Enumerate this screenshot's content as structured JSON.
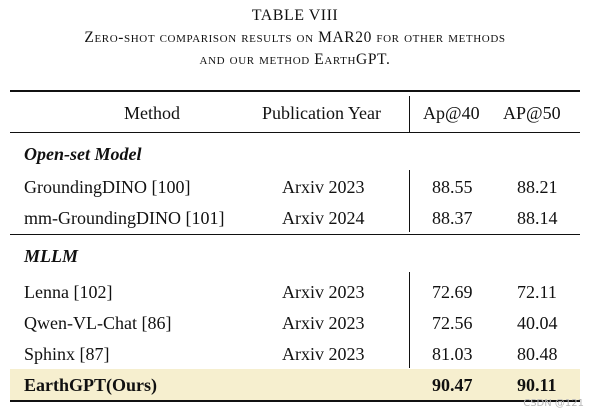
{
  "caption": {
    "title": "TABLE VIII",
    "line1": "Zero-shot comparison results on MAR20 for other methods",
    "line2": "and our method EarthGPT."
  },
  "table": {
    "headers": [
      "Method",
      "Publication Year",
      "Ap@40",
      "AP@50"
    ],
    "sections": [
      {
        "name": "Open-set Model",
        "rows": [
          [
            "GroundingDINO [100]",
            "Arxiv 2023",
            "88.55",
            "88.21"
          ],
          [
            "mm-GroundingDINO [101]",
            "Arxiv 2024",
            "88.37",
            "88.14"
          ]
        ]
      },
      {
        "name": "MLLM",
        "rows": [
          [
            "Lenna [102]",
            "Arxiv 2023",
            "72.69",
            "72.11"
          ],
          [
            "Qwen-VL-Chat [86]",
            "Arxiv 2023",
            "72.56",
            "40.04"
          ],
          [
            "Sphinx [87]",
            "Arxiv 2023",
            "81.03",
            "80.48"
          ]
        ]
      }
    ],
    "ours": [
      "EarthGPT(Ours)",
      "",
      "90.47",
      "90.11"
    ],
    "highlight_color": "#f6efcf"
  },
  "watermark": "CSDN @121"
}
